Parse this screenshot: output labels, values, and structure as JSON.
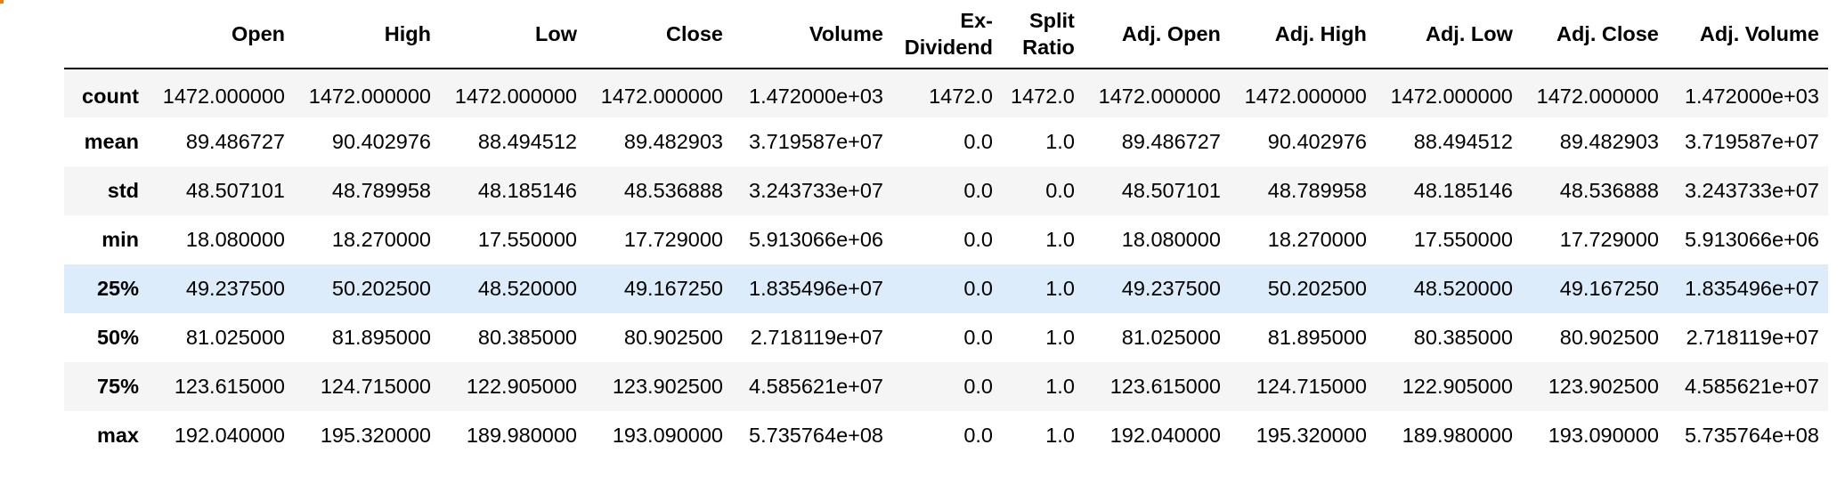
{
  "columns": [
    "Open",
    "High",
    "Low",
    "Close",
    "Volume",
    "Ex-Dividend",
    "Split Ratio",
    "Adj. Open",
    "Adj. High",
    "Adj. Low",
    "Adj. Close",
    "Adj. Volume"
  ],
  "header_lines": {
    "ex_dividend": [
      "Ex-",
      "Dividend"
    ],
    "split_ratio": [
      "Split",
      "Ratio"
    ]
  },
  "rows": [
    {
      "label": "count",
      "values": [
        "1472.000000",
        "1472.000000",
        "1472.000000",
        "1472.000000",
        "1.472000e+03",
        "1472.0",
        "1472.0",
        "1472.000000",
        "1472.000000",
        "1472.000000",
        "1472.000000",
        "1.472000e+03"
      ]
    },
    {
      "label": "mean",
      "values": [
        "89.486727",
        "90.402976",
        "88.494512",
        "89.482903",
        "3.719587e+07",
        "0.0",
        "1.0",
        "89.486727",
        "90.402976",
        "88.494512",
        "89.482903",
        "3.719587e+07"
      ]
    },
    {
      "label": "std",
      "values": [
        "48.507101",
        "48.789958",
        "48.185146",
        "48.536888",
        "3.243733e+07",
        "0.0",
        "0.0",
        "48.507101",
        "48.789958",
        "48.185146",
        "48.536888",
        "3.243733e+07"
      ]
    },
    {
      "label": "min",
      "values": [
        "18.080000",
        "18.270000",
        "17.550000",
        "17.729000",
        "5.913066e+06",
        "0.0",
        "1.0",
        "18.080000",
        "18.270000",
        "17.550000",
        "17.729000",
        "5.913066e+06"
      ]
    },
    {
      "label": "25%",
      "values": [
        "49.237500",
        "50.202500",
        "48.520000",
        "49.167250",
        "1.835496e+07",
        "0.0",
        "1.0",
        "49.237500",
        "50.202500",
        "48.520000",
        "49.167250",
        "1.835496e+07"
      ]
    },
    {
      "label": "50%",
      "values": [
        "81.025000",
        "81.895000",
        "80.385000",
        "80.902500",
        "2.718119e+07",
        "0.0",
        "1.0",
        "81.025000",
        "81.895000",
        "80.385000",
        "80.902500",
        "2.718119e+07"
      ]
    },
    {
      "label": "75%",
      "values": [
        "123.615000",
        "124.715000",
        "122.905000",
        "123.902500",
        "4.585621e+07",
        "0.0",
        "1.0",
        "123.615000",
        "124.715000",
        "122.905000",
        "123.902500",
        "4.585621e+07"
      ]
    },
    {
      "label": "max",
      "values": [
        "192.040000",
        "195.320000",
        "189.980000",
        "193.090000",
        "5.735764e+08",
        "0.0",
        "1.0",
        "192.040000",
        "195.320000",
        "189.980000",
        "193.090000",
        "5.735764e+08"
      ]
    }
  ],
  "highlighted_row": "25%",
  "colors": {
    "hover_highlight": "#dcecfa",
    "stripe": "#f5f5f5",
    "prompt_marker": "#f57c00"
  }
}
